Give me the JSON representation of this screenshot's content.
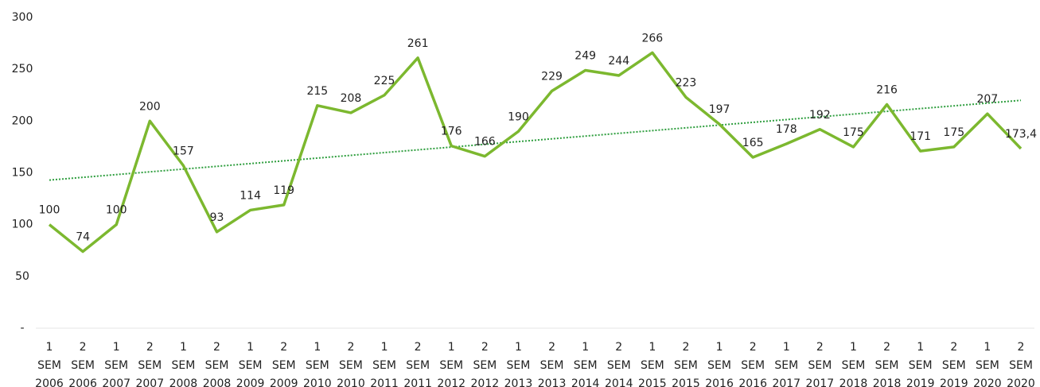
{
  "chart_data": {
    "type": "line",
    "categories": [
      "1 SEM 2006",
      "2 SEM 2006",
      "1 SEM 2007",
      "2 SEM 2007",
      "1 SEM 2008",
      "2 SEM 2008",
      "1 SEM 2009",
      "2 SEM 2009",
      "1 SEM 2010",
      "2 SEM 2010",
      "1 SEM 2011",
      "2 SEM 2011",
      "1 SEM 2012",
      "2 SEM 2012",
      "1 SEM 2013",
      "2 SEM 2013",
      "1 SEM 2014",
      "2 SEM 2014",
      "1 SEM 2015",
      "2 SEM 2015",
      "1 SEM 2016",
      "2 SEM 2016",
      "1 SEM 2017",
      "2 SEM 2017",
      "1 SEM 2018",
      "2 SEM 2018",
      "1 SEM 2019",
      "2 SEM 2019",
      "1 SEM 2020",
      "2 SEM 2020"
    ],
    "values": [
      100,
      74,
      100,
      200,
      157,
      93,
      114,
      119,
      215,
      208,
      225,
      261,
      176,
      166,
      190,
      229,
      249,
      244,
      266,
      223,
      197,
      165,
      178,
      192,
      175,
      216,
      171,
      175,
      207,
      173.4
    ],
    "value_labels": [
      "100",
      "74",
      "100",
      "200",
      "157",
      "93",
      "114",
      "119",
      "215",
      "208",
      "225",
      "261",
      "176",
      "166",
      "190",
      "229",
      "249",
      "244",
      "266",
      "223",
      "197",
      "165",
      "178",
      "192",
      "175",
      "216",
      "171",
      "175",
      "207",
      "173,4"
    ],
    "color": "#7cb82f",
    "trend": [
      143,
      220
    ],
    "ylim": [
      0,
      300
    ],
    "yticks": [
      {
        "value": 0,
        "label": "-"
      },
      50,
      100,
      150,
      200,
      250,
      300
    ]
  }
}
